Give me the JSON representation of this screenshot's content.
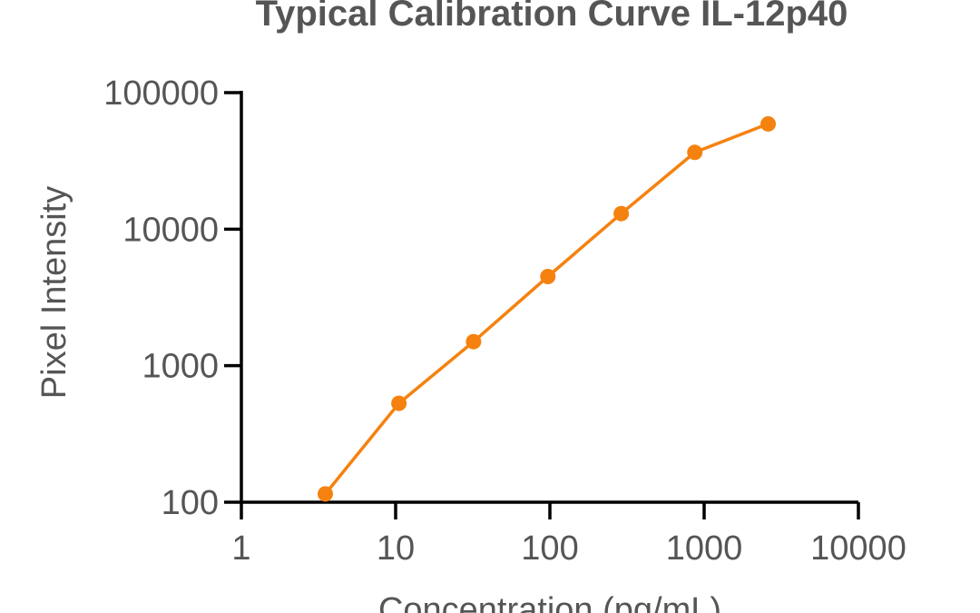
{
  "chart_data": {
    "type": "line",
    "title": "Typical Calibration Curve IL-12p40",
    "xlabel": "Concentration (pg/mL)",
    "ylabel": "Pixel Intensity",
    "xscale": "log",
    "yscale": "log",
    "xlim": [
      1,
      10000
    ],
    "ylim": [
      100,
      100000
    ],
    "xticks": [
      "1",
      "10",
      "100",
      "1000",
      "10000"
    ],
    "yticks": [
      "100",
      "1000",
      "10000",
      "100000"
    ],
    "grid": false,
    "legend": "none",
    "series": [
      {
        "color": "#F5820F",
        "marker": "circle",
        "x": [
          3.5,
          10.5,
          32,
          97,
          290,
          870,
          2600
        ],
        "y": [
          115,
          530,
          1500,
          4500,
          13000,
          36500,
          59000
        ]
      }
    ]
  }
}
